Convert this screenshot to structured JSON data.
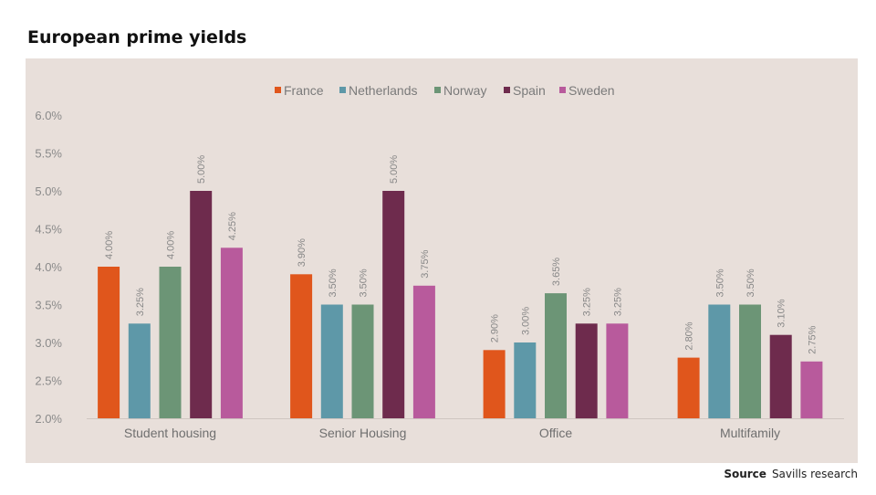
{
  "title": "European prime yields",
  "source": {
    "label": "Source",
    "text": "Savills research"
  },
  "chart_data": {
    "type": "bar",
    "title": "European prime yields",
    "xlabel": "",
    "ylabel": "",
    "ylim": [
      2.0,
      6.0
    ],
    "y_ticks": [
      "2.0%",
      "2.5%",
      "3.0%",
      "3.5%",
      "4.0%",
      "4.5%",
      "5.0%",
      "5.5%",
      "6.0%"
    ],
    "categories": [
      "Student housing",
      "Senior Housing",
      "Office",
      "Multifamily"
    ],
    "legend_position": "top-center",
    "grid": false,
    "series": [
      {
        "name": "France",
        "color": "#e0561c",
        "values": [
          4.0,
          3.9,
          2.9,
          2.8
        ],
        "labels": [
          "4.00%",
          "3.90%",
          "2.90%",
          "2.80%"
        ]
      },
      {
        "name": "Netherlands",
        "color": "#5e98a8",
        "values": [
          3.25,
          3.5,
          3.0,
          3.5
        ],
        "labels": [
          "3.25%",
          "3.50%",
          "3.00%",
          "3.50%"
        ]
      },
      {
        "name": "Norway",
        "color": "#6c9576",
        "values": [
          4.0,
          3.5,
          3.65,
          3.5
        ],
        "labels": [
          "4.00%",
          "3.50%",
          "3.65%",
          "3.50%"
        ]
      },
      {
        "name": "Spain",
        "color": "#6e2b4d",
        "values": [
          5.0,
          5.0,
          3.25,
          3.1
        ],
        "labels": [
          "5.00%",
          "5.00%",
          "3.25%",
          "3.10%"
        ]
      },
      {
        "name": "Sweden",
        "color": "#b85a9c",
        "values": [
          4.25,
          3.75,
          3.25,
          2.75
        ],
        "labels": [
          "4.25%",
          "3.75%",
          "3.25%",
          "2.75%"
        ]
      }
    ]
  }
}
